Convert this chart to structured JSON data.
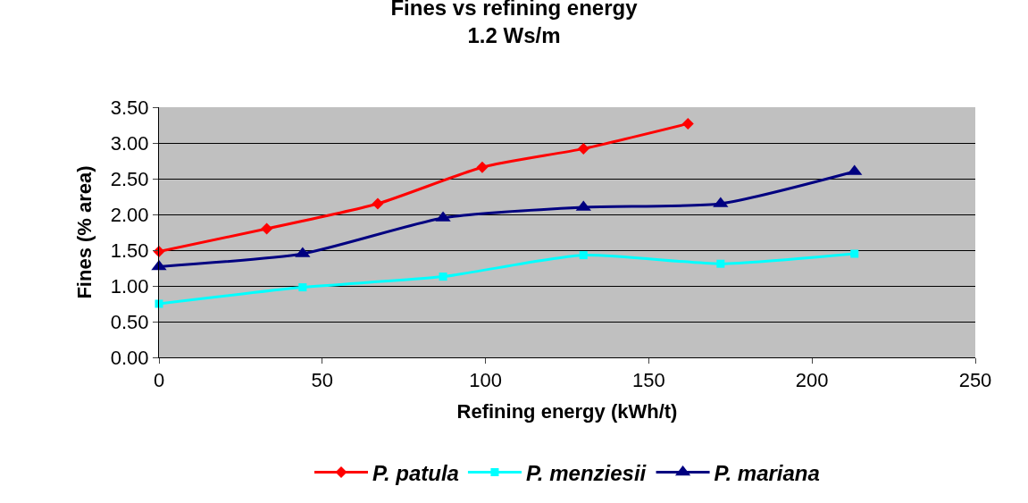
{
  "chart_data": {
    "type": "line",
    "title": "Fines vs refining energy",
    "subtitle": "1.2 Ws/m",
    "xlabel": "Refining energy (kWh/t)",
    "ylabel": "Fines (% area)",
    "xlim": [
      0,
      250
    ],
    "xticks": [
      0,
      50,
      100,
      150,
      200,
      250
    ],
    "ylim": [
      0,
      3.5
    ],
    "yticks": [
      {
        "value": 0,
        "label": "0.00"
      },
      {
        "value": 0.5,
        "label": "0.50"
      },
      {
        "value": 1,
        "label": "1.00"
      },
      {
        "value": 1.5,
        "label": "1.50"
      },
      {
        "value": 2,
        "label": "2.00"
      },
      {
        "value": 2.5,
        "label": "2.50"
      },
      {
        "value": 3,
        "label": "3.00"
      },
      {
        "value": 3.5,
        "label": "3.50"
      }
    ],
    "grid": "y",
    "legend": "bottom",
    "line_style": "solid",
    "series": [
      {
        "name": "P. patula",
        "color": "#ff0000",
        "marker": "diamond",
        "x": [
          0,
          33,
          67,
          99,
          130,
          162
        ],
        "values": [
          1.48,
          1.8,
          2.15,
          2.66,
          2.92,
          3.27
        ]
      },
      {
        "name": "P. menziesii",
        "color": "#00ffff",
        "marker": "square",
        "x": [
          0,
          44,
          87,
          130,
          172,
          213
        ],
        "values": [
          0.75,
          0.98,
          1.13,
          1.43,
          1.31,
          1.45
        ]
      },
      {
        "name": "P. mariana",
        "color": "#000080",
        "marker": "triangle",
        "x": [
          0,
          44,
          87,
          130,
          172,
          213
        ],
        "values": [
          1.27,
          1.45,
          1.95,
          2.1,
          2.15,
          2.6
        ]
      }
    ]
  }
}
